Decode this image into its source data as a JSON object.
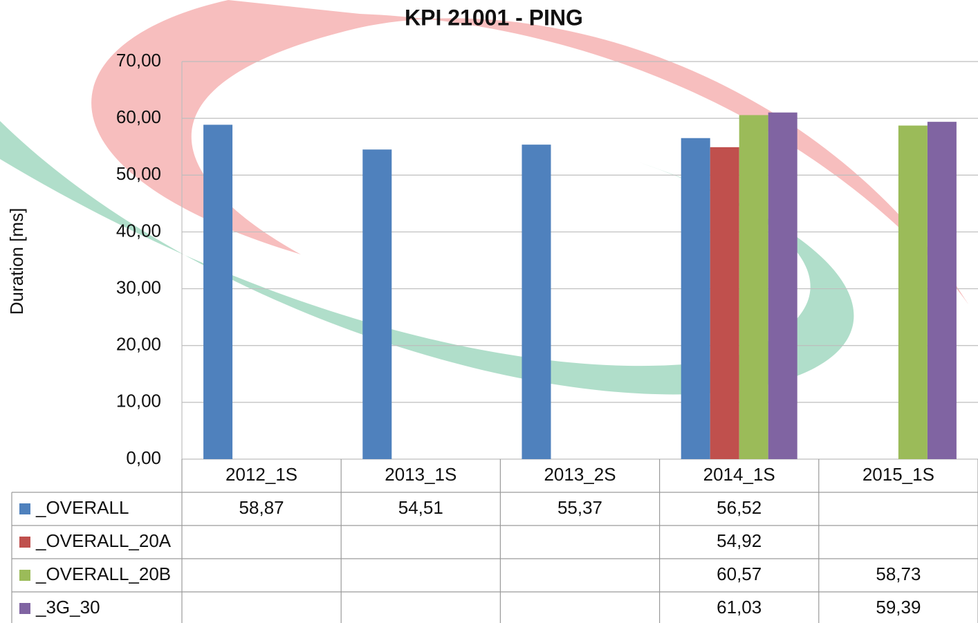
{
  "chart_data": {
    "type": "bar",
    "title": "KPI 21001 - PING",
    "y_label": "Duration [ms]",
    "categories": [
      "2012_1S",
      "2013_1S",
      "2013_2S",
      "2014_1S",
      "2015_1S"
    ],
    "series": [
      {
        "name": "_OVERALL",
        "color": "#4f81bd",
        "values": [
          58.87,
          54.51,
          55.37,
          56.52,
          null
        ],
        "value_labels": [
          "58,87",
          "54,51",
          "55,37",
          "56,52",
          null
        ]
      },
      {
        "name": "_OVERALL_20A",
        "color": "#c0504d",
        "values": [
          null,
          null,
          null,
          54.92,
          null
        ],
        "value_labels": [
          null,
          null,
          null,
          "54,92",
          null
        ]
      },
      {
        "name": "_OVERALL_20B",
        "color": "#9bbb59",
        "values": [
          null,
          null,
          null,
          60.57,
          58.73
        ],
        "value_labels": [
          null,
          null,
          null,
          "60,57",
          "58,73"
        ]
      },
      {
        "name": "_3G_30",
        "color": "#8064a2",
        "values": [
          null,
          null,
          null,
          61.03,
          59.39
        ],
        "value_labels": [
          null,
          null,
          null,
          "61,03",
          "59,39"
        ]
      }
    ],
    "ylim": [
      0,
      70
    ],
    "yticks": [
      {
        "value": 0,
        "label": "0,00"
      },
      {
        "value": 10,
        "label": "10,00"
      },
      {
        "value": 20,
        "label": "20,00"
      },
      {
        "value": 30,
        "label": "30,00"
      },
      {
        "value": 40,
        "label": "40,00"
      },
      {
        "value": 50,
        "label": "50,00"
      },
      {
        "value": 60,
        "label": "60,00"
      },
      {
        "value": 70,
        "label": "70,00"
      }
    ],
    "grid": true
  }
}
